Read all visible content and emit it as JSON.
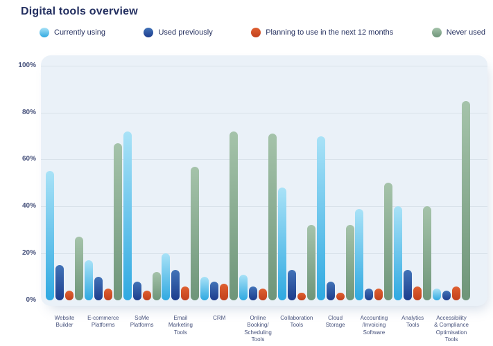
{
  "header": {
    "title": "Digital tools overview"
  },
  "colors": {
    "title_text": "#232f60",
    "axis_text": "#46517b",
    "panel_bg": "#eaf1f8",
    "gridline": "#d9e2ea",
    "page_bg": "#ffffff"
  },
  "chart_data": {
    "type": "bar",
    "title": "Digital tools overview",
    "xlabel": "",
    "ylabel": "",
    "ylim": [
      0,
      100
    ],
    "grid": true,
    "legend_position": "top",
    "y_ticks": [
      "0%",
      "20%",
      "40%",
      "60%",
      "80%",
      "100%"
    ],
    "categories": [
      "Website\nBuilder",
      "E-commerce\nPlatforms",
      "SoMe\nPlatforms",
      "Email\nMarketing\nTools",
      "CRM",
      "Online\nBooking/\nScheduling\nTools",
      "Collaboration\nTools",
      "Cloud\nStorage",
      "Accounting\n/Invoicing\nSoftware",
      "Analytics\nTools",
      "Accessibility\n& Compliance\nOptimisation\nTools"
    ],
    "series": [
      {
        "name": "Currently using",
        "color_top": "#a9e2f7",
        "color_bottom": "#2fa9e1",
        "values": [
          55,
          17,
          72,
          20,
          10,
          11,
          48,
          70,
          39,
          40,
          5
        ]
      },
      {
        "name": "Used previously",
        "color_top": "#4273b8",
        "color_bottom": "#1d3d8d",
        "values": [
          15,
          10,
          8,
          13,
          8,
          6,
          13,
          8,
          5,
          13,
          4
        ]
      },
      {
        "name": "Planning to use in the next 12 months",
        "color_top": "#df6031",
        "color_bottom": "#c2411d",
        "values": [
          4,
          5,
          4,
          6,
          7,
          5,
          2,
          2,
          5,
          6,
          6
        ]
      },
      {
        "name": "Never used",
        "color_top": "#a5c3aa",
        "color_bottom": "#6e9579",
        "values": [
          27,
          67,
          12,
          57,
          72,
          71,
          32,
          32,
          50,
          40,
          85
        ]
      }
    ]
  }
}
